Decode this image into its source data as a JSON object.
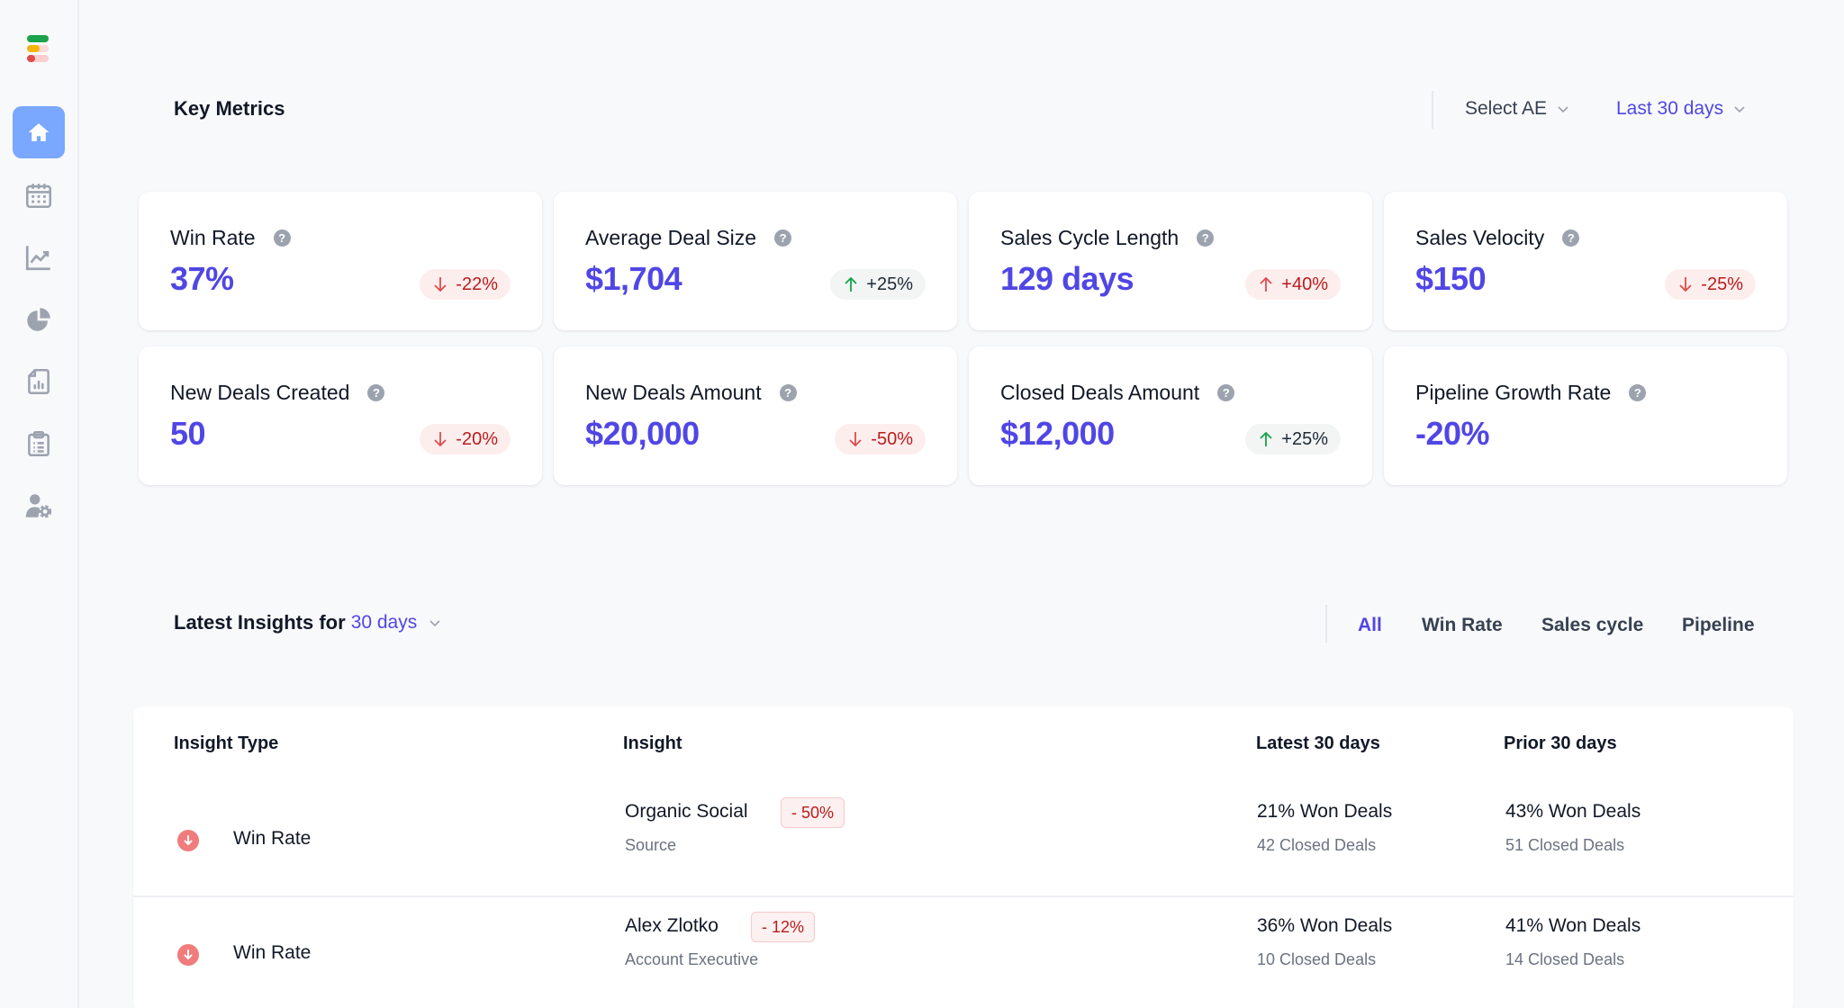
{
  "sidebar": {
    "logo_colors": [
      "#1aa34a",
      "#f6b40e",
      "#e04b4b"
    ],
    "items": [
      {
        "name": "home",
        "icon": "home-icon",
        "active": true
      },
      {
        "name": "calendar",
        "icon": "calendar-icon",
        "active": false
      },
      {
        "name": "trends",
        "icon": "line-chart-icon",
        "active": false
      },
      {
        "name": "breakdown",
        "icon": "pie-chart-icon",
        "active": false
      },
      {
        "name": "reports",
        "icon": "report-document-icon",
        "active": false
      },
      {
        "name": "tasks",
        "icon": "clipboard-list-icon",
        "active": false
      },
      {
        "name": "settings",
        "icon": "user-settings-icon",
        "active": false
      }
    ]
  },
  "key_metrics": {
    "title": "Key Metrics",
    "select_ae": "Select AE",
    "date_range": "Last 30 days",
    "cards": [
      {
        "title": "Win Rate",
        "value": "37%",
        "change": "-22%",
        "direction": "down",
        "tone": "neg"
      },
      {
        "title": "Average Deal Size",
        "value": "$1,704",
        "change": "+25%",
        "direction": "up",
        "tone": "pos"
      },
      {
        "title": "Sales Cycle Length",
        "value": "129 days",
        "change": "+40%",
        "direction": "up",
        "tone": "neg"
      },
      {
        "title": "Sales Velocity",
        "value": "$150",
        "change": "-25%",
        "direction": "down",
        "tone": "neg"
      },
      {
        "title": "New Deals Created",
        "value": "50",
        "change": "-20%",
        "direction": "down",
        "tone": "neg"
      },
      {
        "title": "New Deals Amount",
        "value": "$20,000",
        "change": "-50%",
        "direction": "down",
        "tone": "neg"
      },
      {
        "title": "Closed Deals Amount",
        "value": "$12,000",
        "change": "+25%",
        "direction": "up",
        "tone": "pos"
      },
      {
        "title": "Pipeline Growth Rate",
        "value": "-20%",
        "change": null,
        "direction": null,
        "tone": null
      }
    ]
  },
  "insights": {
    "title_prefix": "Latest Insights for",
    "period": "30 days",
    "tabs": [
      {
        "label": "All",
        "active": true
      },
      {
        "label": "Win Rate",
        "active": false
      },
      {
        "label": "Sales cycle",
        "active": false
      },
      {
        "label": "Pipeline",
        "active": false
      }
    ],
    "columns": {
      "type": "Insight Type",
      "insight": "Insight",
      "latest": "Latest 30 days",
      "prior": "Prior 30 days"
    },
    "rows": [
      {
        "type": "Win Rate",
        "type_icon": "arrow-down-circle-icon",
        "insight": "Organic Social",
        "change": "- 50%",
        "category": "Source",
        "latest_main": "21% Won Deals",
        "latest_sub": "42 Closed Deals",
        "prior_main": "43% Won Deals",
        "prior_sub": "51 Closed Deals"
      },
      {
        "type": "Win Rate",
        "type_icon": "arrow-down-circle-icon",
        "insight": "Alex Zlotko",
        "change": "- 12%",
        "category": "Account Executive",
        "latest_main": "36% Won Deals",
        "latest_sub": "10 Closed Deals",
        "prior_main": "41% Won Deals",
        "prior_sub": "14 Closed Deals"
      }
    ]
  },
  "colors": {
    "accent": "#5046e5",
    "nav_active": "#7aa7ff",
    "negative": "#b91c1c",
    "positive_arrow": "#16a34a",
    "negative_badge_bg": "#fdeeee"
  }
}
